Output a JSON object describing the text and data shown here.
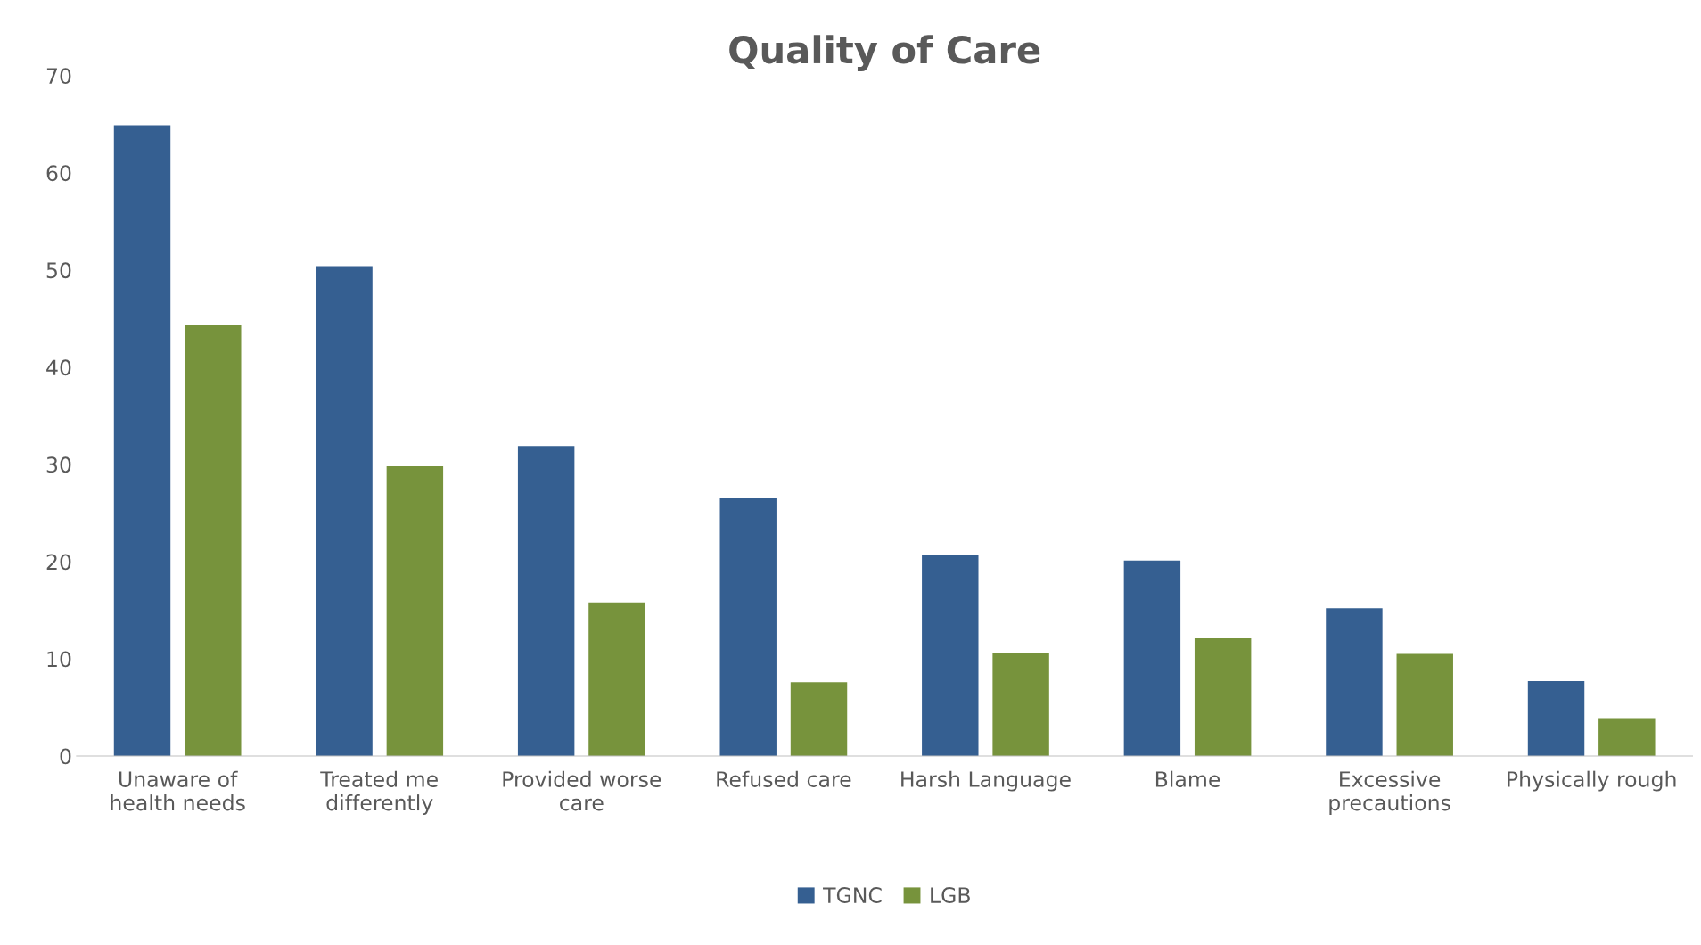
{
  "chart_data": {
    "type": "bar",
    "title": "Quality of Care",
    "categories": [
      "Unaware of\nhealth needs",
      "Treated me\ndifferently",
      "Provided worse\ncare",
      "Refused care",
      "Harsh Language",
      "Blame",
      "Excessive\nprecautions",
      "Physically rough"
    ],
    "series": [
      {
        "name": "TGNC",
        "color": "#355f91",
        "values": [
          64.9,
          50.4,
          31.9,
          26.5,
          20.7,
          20.1,
          15.2,
          7.7
        ]
      },
      {
        "name": "LGB",
        "color": "#77933c",
        "values": [
          44.3,
          29.8,
          15.8,
          7.6,
          10.6,
          12.1,
          10.5,
          3.9
        ]
      }
    ],
    "ylim": [
      0,
      70
    ],
    "yticks": [
      0,
      10,
      20,
      30,
      40,
      50,
      60,
      70
    ],
    "grid": false,
    "legend": "bottom"
  }
}
